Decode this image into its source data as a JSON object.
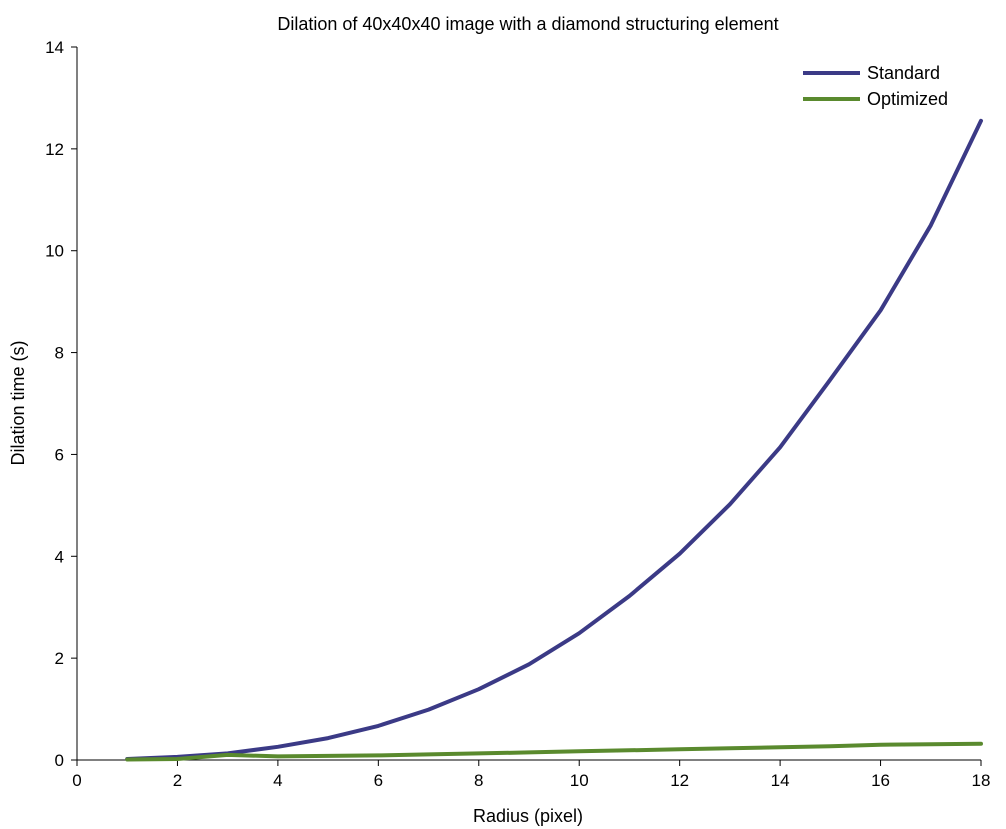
{
  "chart_data": {
    "type": "line",
    "title": "Dilation of 40x40x40 image with a diamond structuring element",
    "xlabel": "Radius (pixel)",
    "ylabel": "Dilation time (s)",
    "xlim": [
      0,
      18
    ],
    "ylim": [
      0,
      14
    ],
    "xticks": [
      0,
      2,
      4,
      6,
      8,
      10,
      12,
      14,
      16,
      18
    ],
    "yticks": [
      0,
      2,
      4,
      6,
      8,
      10,
      12,
      14
    ],
    "grid": false,
    "legend_position": "top-right",
    "x": [
      1,
      2,
      3,
      4,
      5,
      6,
      7,
      8,
      9,
      10,
      11,
      12,
      13,
      14,
      15,
      16,
      17,
      18
    ],
    "series": [
      {
        "name": "Standard",
        "color": "#3b3a86",
        "values": [
          0.02,
          0.06,
          0.13,
          0.26,
          0.43,
          0.67,
          0.99,
          1.39,
          1.88,
          2.49,
          3.22,
          4.05,
          5.02,
          6.14,
          7.47,
          8.83,
          10.5,
          12.55
        ]
      },
      {
        "name": "Optimized",
        "color": "#5a8a2e",
        "values": [
          0.01,
          0.02,
          0.1,
          0.07,
          0.08,
          0.09,
          0.11,
          0.13,
          0.15,
          0.17,
          0.19,
          0.21,
          0.23,
          0.25,
          0.27,
          0.3,
          0.31,
          0.32
        ]
      }
    ]
  }
}
